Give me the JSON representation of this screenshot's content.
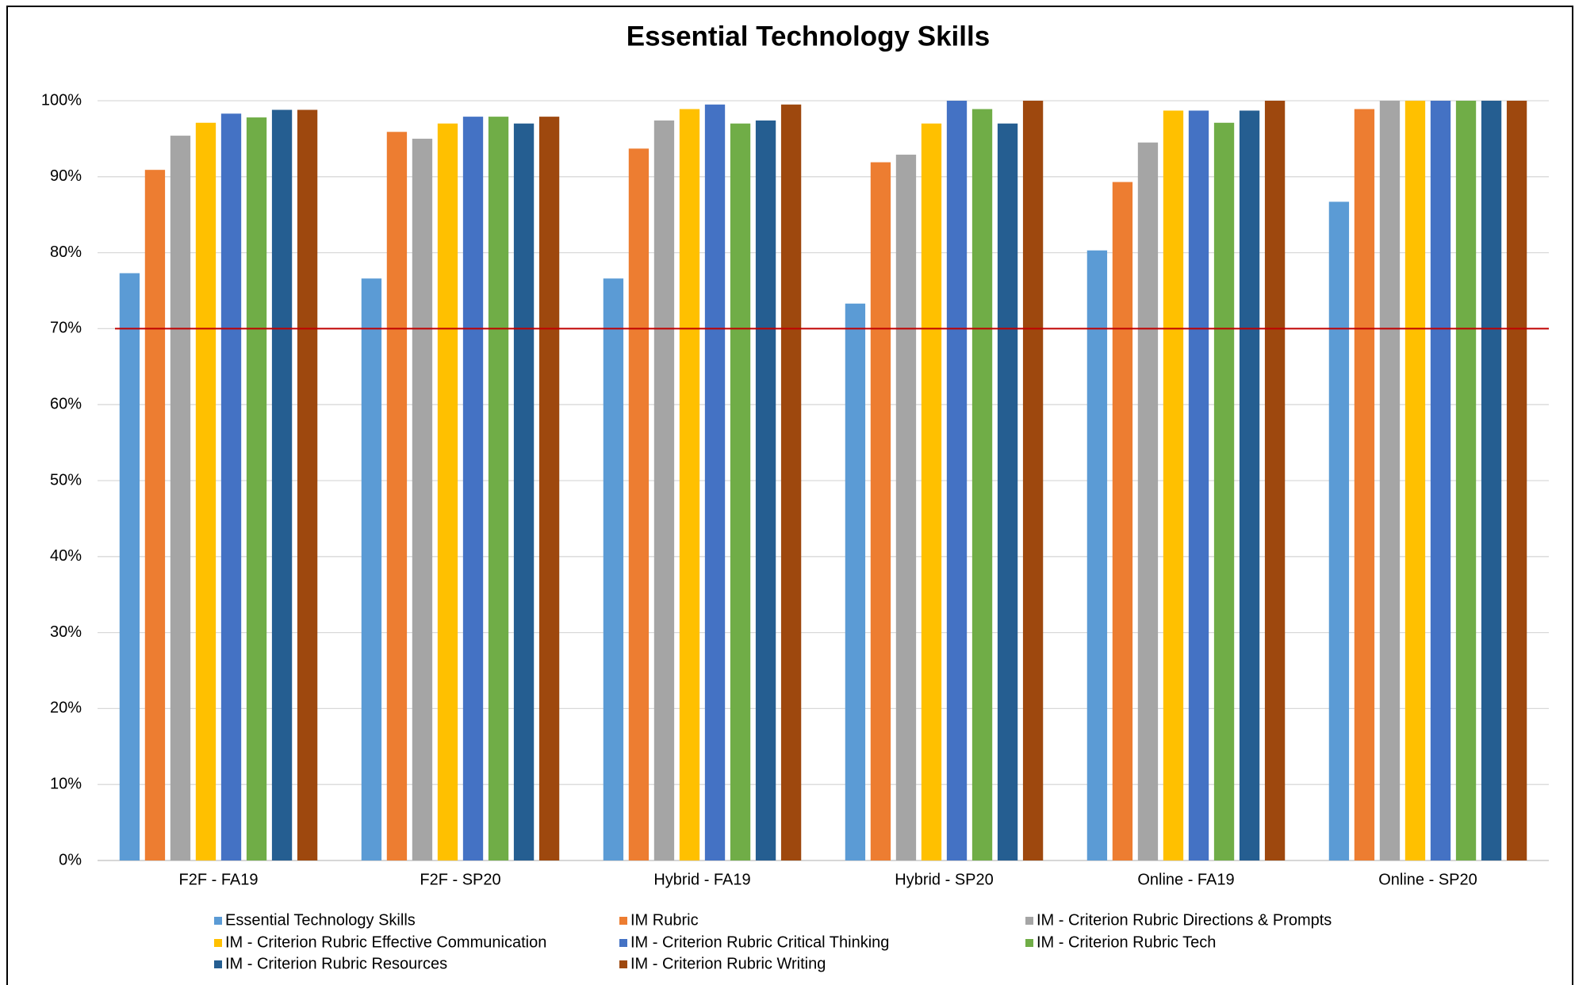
{
  "chart_data": {
    "type": "bar",
    "title": "Essential Technology Skills",
    "categories": [
      "F2F - FA19",
      "F2F - SP20",
      "Hybrid - FA19",
      "Hybrid - SP20",
      "Online - FA19",
      "Online - SP20"
    ],
    "series": [
      {
        "name": "Essential Technology Skills",
        "color": "#5b9bd5",
        "values": [
          77.3,
          76.6,
          76.6,
          73.3,
          80.3,
          86.7
        ]
      },
      {
        "name": "IM Rubric",
        "color": "#ed7d31",
        "values": [
          90.9,
          95.9,
          93.7,
          91.9,
          89.3,
          98.9
        ]
      },
      {
        "name": "IM - Criterion Rubric Directions & Prompts",
        "color": "#a5a5a5",
        "values": [
          95.4,
          95.0,
          97.4,
          92.9,
          94.5,
          100
        ]
      },
      {
        "name": "IM - Criterion Rubric Effective Communication",
        "color": "#ffc000",
        "values": [
          97.1,
          97.0,
          98.9,
          97.0,
          98.7,
          100
        ]
      },
      {
        "name": "IM - Criterion Rubric Critical Thinking",
        "color": "#4472c4",
        "values": [
          98.3,
          97.9,
          99.5,
          100,
          98.7,
          100
        ]
      },
      {
        "name": "IM - Criterion Rubric Tech",
        "color": "#70ad47",
        "values": [
          97.8,
          97.9,
          97.0,
          98.9,
          97.1,
          100
        ]
      },
      {
        "name": "IM - Criterion Rubric Resources",
        "color": "#255e91",
        "values": [
          98.8,
          97.0,
          97.4,
          97.0,
          98.7,
          100
        ]
      },
      {
        "name": "IM - Criterion Rubric Writing",
        "color": "#9e480e",
        "values": [
          98.8,
          97.9,
          99.5,
          100,
          100,
          100
        ]
      }
    ],
    "ylim": [
      0,
      100
    ],
    "yticks": [
      {
        "value": 0,
        "label": "0%"
      },
      {
        "value": 10,
        "label": "10%"
      },
      {
        "value": 20,
        "label": "20%"
      },
      {
        "value": 30,
        "label": "30%"
      },
      {
        "value": 40,
        "label": "40%"
      },
      {
        "value": 50,
        "label": "50%"
      },
      {
        "value": 60,
        "label": "60%"
      },
      {
        "value": 70,
        "label": "70%"
      },
      {
        "value": 80,
        "label": "80%"
      },
      {
        "value": 90,
        "label": "90%"
      },
      {
        "value": 100,
        "label": "100%"
      }
    ],
    "grid": true,
    "reference_line": {
      "value": 70,
      "color": "#c00000"
    },
    "legend": "bottom"
  }
}
